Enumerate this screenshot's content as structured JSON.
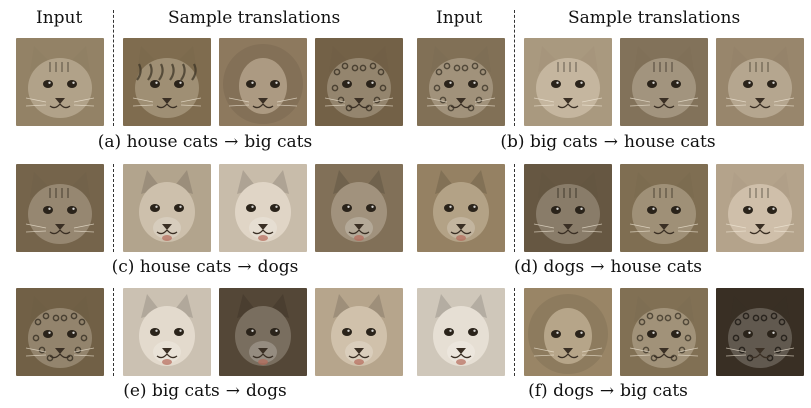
{
  "headers": {
    "input": "Input",
    "samples": "Sample translations"
  },
  "arrow": "→",
  "panels": [
    {
      "id": "a",
      "label": "(a)",
      "source": "house cats",
      "target": "big cats",
      "input": {
        "kind": "cat",
        "tone": "#a08e6f"
      },
      "samples": [
        {
          "kind": "tiger",
          "tone": "#8a7656"
        },
        {
          "kind": "lion",
          "tone": "#9a8466"
        },
        {
          "kind": "leopard",
          "tone": "#7d6a4e"
        }
      ]
    },
    {
      "id": "b",
      "label": "(b)",
      "source": "big cats",
      "target": "house cats",
      "input": {
        "kind": "leopard",
        "tone": "#8c7a5e"
      },
      "samples": [
        {
          "kind": "cat",
          "tone": "#b8a68a"
        },
        {
          "kind": "cat",
          "tone": "#8e7c62"
        },
        {
          "kind": "cat",
          "tone": "#a59276"
        }
      ]
    },
    {
      "id": "c",
      "label": "(c)",
      "source": "house cats",
      "target": "dogs",
      "input": {
        "kind": "cat",
        "tone": "#7f6d52"
      },
      "samples": [
        {
          "kind": "dog",
          "tone": "#c2b29a"
        },
        {
          "kind": "dog",
          "tone": "#d9ccb9"
        },
        {
          "kind": "dog",
          "tone": "#8c7a60"
        }
      ]
    },
    {
      "id": "d",
      "label": "(d)",
      "source": "dogs",
      "target": "house cats",
      "input": {
        "kind": "dog",
        "tone": "#a28d6c"
      },
      "samples": [
        {
          "kind": "cat",
          "tone": "#6f5f48"
        },
        {
          "kind": "cat",
          "tone": "#8a7859"
        },
        {
          "kind": "cat",
          "tone": "#c4b197"
        }
      ]
    },
    {
      "id": "e",
      "label": "(e)",
      "source": "big cats",
      "target": "dogs",
      "input": {
        "kind": "leopard",
        "tone": "#7b694d"
      },
      "samples": [
        {
          "kind": "dog",
          "tone": "#ddd2c2"
        },
        {
          "kind": "dog",
          "tone": "#5c4e3c"
        },
        {
          "kind": "dog",
          "tone": "#c6b398"
        }
      ]
    },
    {
      "id": "f",
      "label": "(f)",
      "source": "dogs",
      "target": "big cats",
      "input": {
        "kind": "dog",
        "tone": "#e1d8ca"
      },
      "samples": [
        {
          "kind": "lion",
          "tone": "#a6916f"
        },
        {
          "kind": "leopard",
          "tone": "#8c7a5c"
        },
        {
          "kind": "leopard",
          "tone": "#3e3428"
        }
      ]
    }
  ]
}
